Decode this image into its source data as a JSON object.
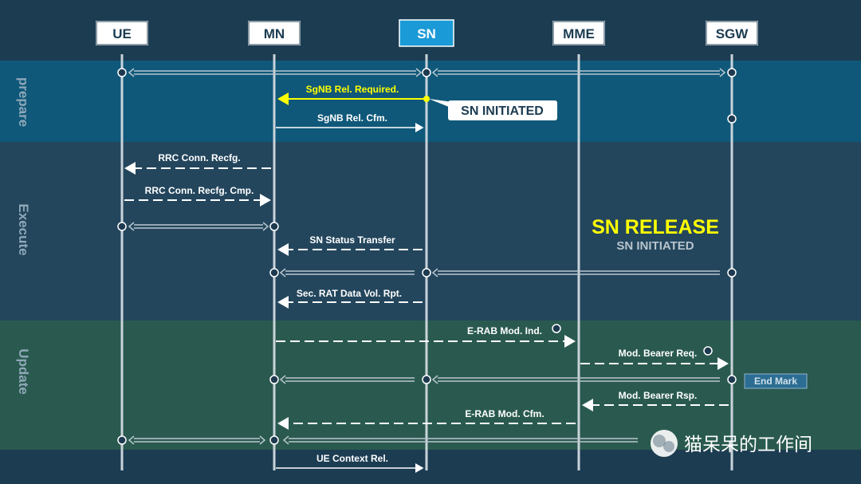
{
  "entities": [
    {
      "id": "ue",
      "label": "UE",
      "highlight": false
    },
    {
      "id": "mn",
      "label": "MN",
      "highlight": false
    },
    {
      "id": "sn",
      "label": "SN",
      "highlight": true
    },
    {
      "id": "mme",
      "label": "MME",
      "highlight": false
    },
    {
      "id": "sgw",
      "label": "SGW",
      "highlight": false
    }
  ],
  "phases": [
    {
      "id": "prepare",
      "label": "prepare",
      "color": "#0f5879"
    },
    {
      "id": "execute",
      "label": "Execute",
      "color": "#23465d"
    },
    {
      "id": "update",
      "label": "Update",
      "color": "#2a5a4f"
    }
  ],
  "messages": [
    {
      "id": "sgnb-rel-required",
      "label": "SgNB Rel. Required.",
      "from": "sn",
      "to": "mn",
      "style": "solid",
      "color": "#ffff00"
    },
    {
      "id": "sgnb-rel-cfm",
      "label": "SgNB Rel. Cfm.",
      "from": "mn",
      "to": "sn",
      "style": "solid",
      "color": "#ffffff"
    },
    {
      "id": "rrc-conn-recfg",
      "label": "RRC Conn. Recfg.",
      "from": "mn",
      "to": "ue",
      "style": "dashed",
      "color": "#ffffff"
    },
    {
      "id": "rrc-conn-recfg-cmp",
      "label": "RRC Conn. Recfg. Cmp.",
      "from": "ue",
      "to": "mn",
      "style": "dashed",
      "color": "#ffffff"
    },
    {
      "id": "sn-status-transfer",
      "label": "SN Status Transfer",
      "from": "sn",
      "to": "mn",
      "style": "dashed",
      "color": "#ffffff"
    },
    {
      "id": "sec-rat-data-vol-rpt",
      "label": "Sec. RAT Data Vol. Rpt.",
      "from": "sn",
      "to": "mn",
      "style": "dashed",
      "color": "#ffffff"
    },
    {
      "id": "e-rab-mod-ind",
      "label": "E-RAB Mod. Ind.",
      "from": "mn",
      "to": "mme",
      "style": "dashed",
      "color": "#ffffff"
    },
    {
      "id": "mod-bearer-req",
      "label": "Mod. Bearer Req.",
      "from": "mme",
      "to": "sgw",
      "style": "dashed",
      "color": "#ffffff"
    },
    {
      "id": "mod-bearer-rsp",
      "label": "Mod. Bearer Rsp.",
      "from": "sgw",
      "to": "mme",
      "style": "dashed",
      "color": "#ffffff"
    },
    {
      "id": "e-rab-mod-cfm",
      "label": "E-RAB Mod. Cfm.",
      "from": "mme",
      "to": "mn",
      "style": "dashed",
      "color": "#ffffff"
    },
    {
      "id": "ue-context-rel",
      "label": "UE Context Rel.",
      "from": "sn",
      "to": "mn",
      "style": "solid",
      "color": "#ffffff"
    }
  ],
  "callout": {
    "label": "SN INITIATED"
  },
  "headline": {
    "title": "SN RELEASE",
    "subtitle": "SN INITIATED",
    "title_color": "#ffff00",
    "subtitle_color": "#b8c4cc"
  },
  "end_mark": {
    "label": "End Mark"
  },
  "watermark": {
    "label": "猫呆呆的工作间"
  },
  "colors": {
    "data_path": "#b9c6cf",
    "lifeline": "#c9d3da",
    "message": "#ffffff",
    "highlight": "#ffff00",
    "sn_box": "#1a9ad6"
  }
}
